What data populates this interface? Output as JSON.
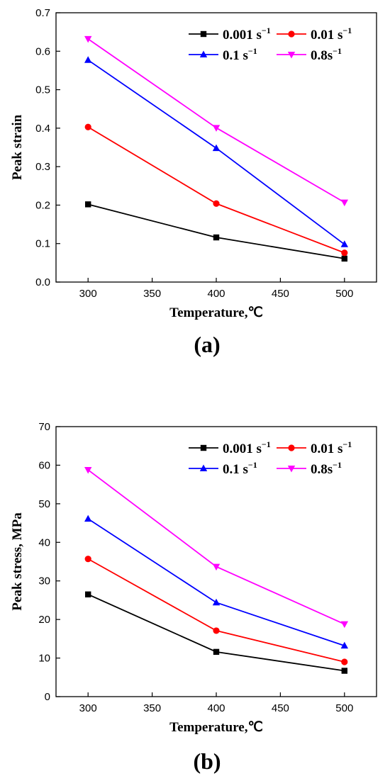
{
  "chart_data": [
    {
      "type": "line",
      "panel_label": "(a)",
      "xlabel": "Temperature,℃",
      "ylabel": "Peak strain",
      "x": [
        300,
        400,
        500
      ],
      "xlim": [
        275,
        525
      ],
      "xticks": [
        300,
        350,
        400,
        450,
        500
      ],
      "ylim": [
        0,
        0.7
      ],
      "yticks": [
        0.0,
        0.1,
        0.2,
        0.3,
        0.4,
        0.5,
        0.6,
        0.7
      ],
      "ytick_labels": [
        "0.0",
        "0.1",
        "0.2",
        "0.3",
        "0.4",
        "0.5",
        "0.6",
        "0.7"
      ],
      "grid": false,
      "legend": "top-right",
      "series": [
        {
          "name": "0.001 s",
          "sup": "−1",
          "color": "#000000",
          "marker": "square",
          "values": [
            0.202,
            0.116,
            0.061
          ]
        },
        {
          "name": "0.01 s",
          "sup": "−1",
          "color": "#ff0000",
          "marker": "circle",
          "values": [
            0.403,
            0.204,
            0.076
          ]
        },
        {
          "name": "0.1 s",
          "sup": "−1",
          "color": "#0000ff",
          "marker": "triangle-up",
          "values": [
            0.577,
            0.348,
            0.098
          ]
        },
        {
          "name": "0.8s",
          "sup": "−1",
          "color": "#ff00ff",
          "marker": "triangle-down",
          "values": [
            0.632,
            0.401,
            0.207
          ]
        }
      ]
    },
    {
      "type": "line",
      "panel_label": "(b)",
      "xlabel": "Temperature,℃",
      "ylabel": "Peak stress, MPa",
      "x": [
        300,
        400,
        500
      ],
      "xlim": [
        275,
        525
      ],
      "xticks": [
        300,
        350,
        400,
        450,
        500
      ],
      "ylim": [
        0,
        70
      ],
      "yticks": [
        0,
        10,
        20,
        30,
        40,
        50,
        60,
        70
      ],
      "ytick_labels": [
        "0",
        "10",
        "20",
        "30",
        "40",
        "50",
        "60",
        "70"
      ],
      "grid": false,
      "legend": "top-right",
      "series": [
        {
          "name": "0.001 s",
          "sup": "−1",
          "color": "#000000",
          "marker": "square",
          "values": [
            26.5,
            11.6,
            6.7
          ]
        },
        {
          "name": "0.01 s",
          "sup": "−1",
          "color": "#ff0000",
          "marker": "circle",
          "values": [
            35.7,
            17.1,
            9.0
          ]
        },
        {
          "name": "0.1 s",
          "sup": "−1",
          "color": "#0000ff",
          "marker": "triangle-up",
          "values": [
            46.1,
            24.4,
            13.2
          ]
        },
        {
          "name": "0.8s",
          "sup": "−1",
          "color": "#ff00ff",
          "marker": "triangle-down",
          "values": [
            58.8,
            33.7,
            18.8
          ]
        }
      ]
    }
  ]
}
